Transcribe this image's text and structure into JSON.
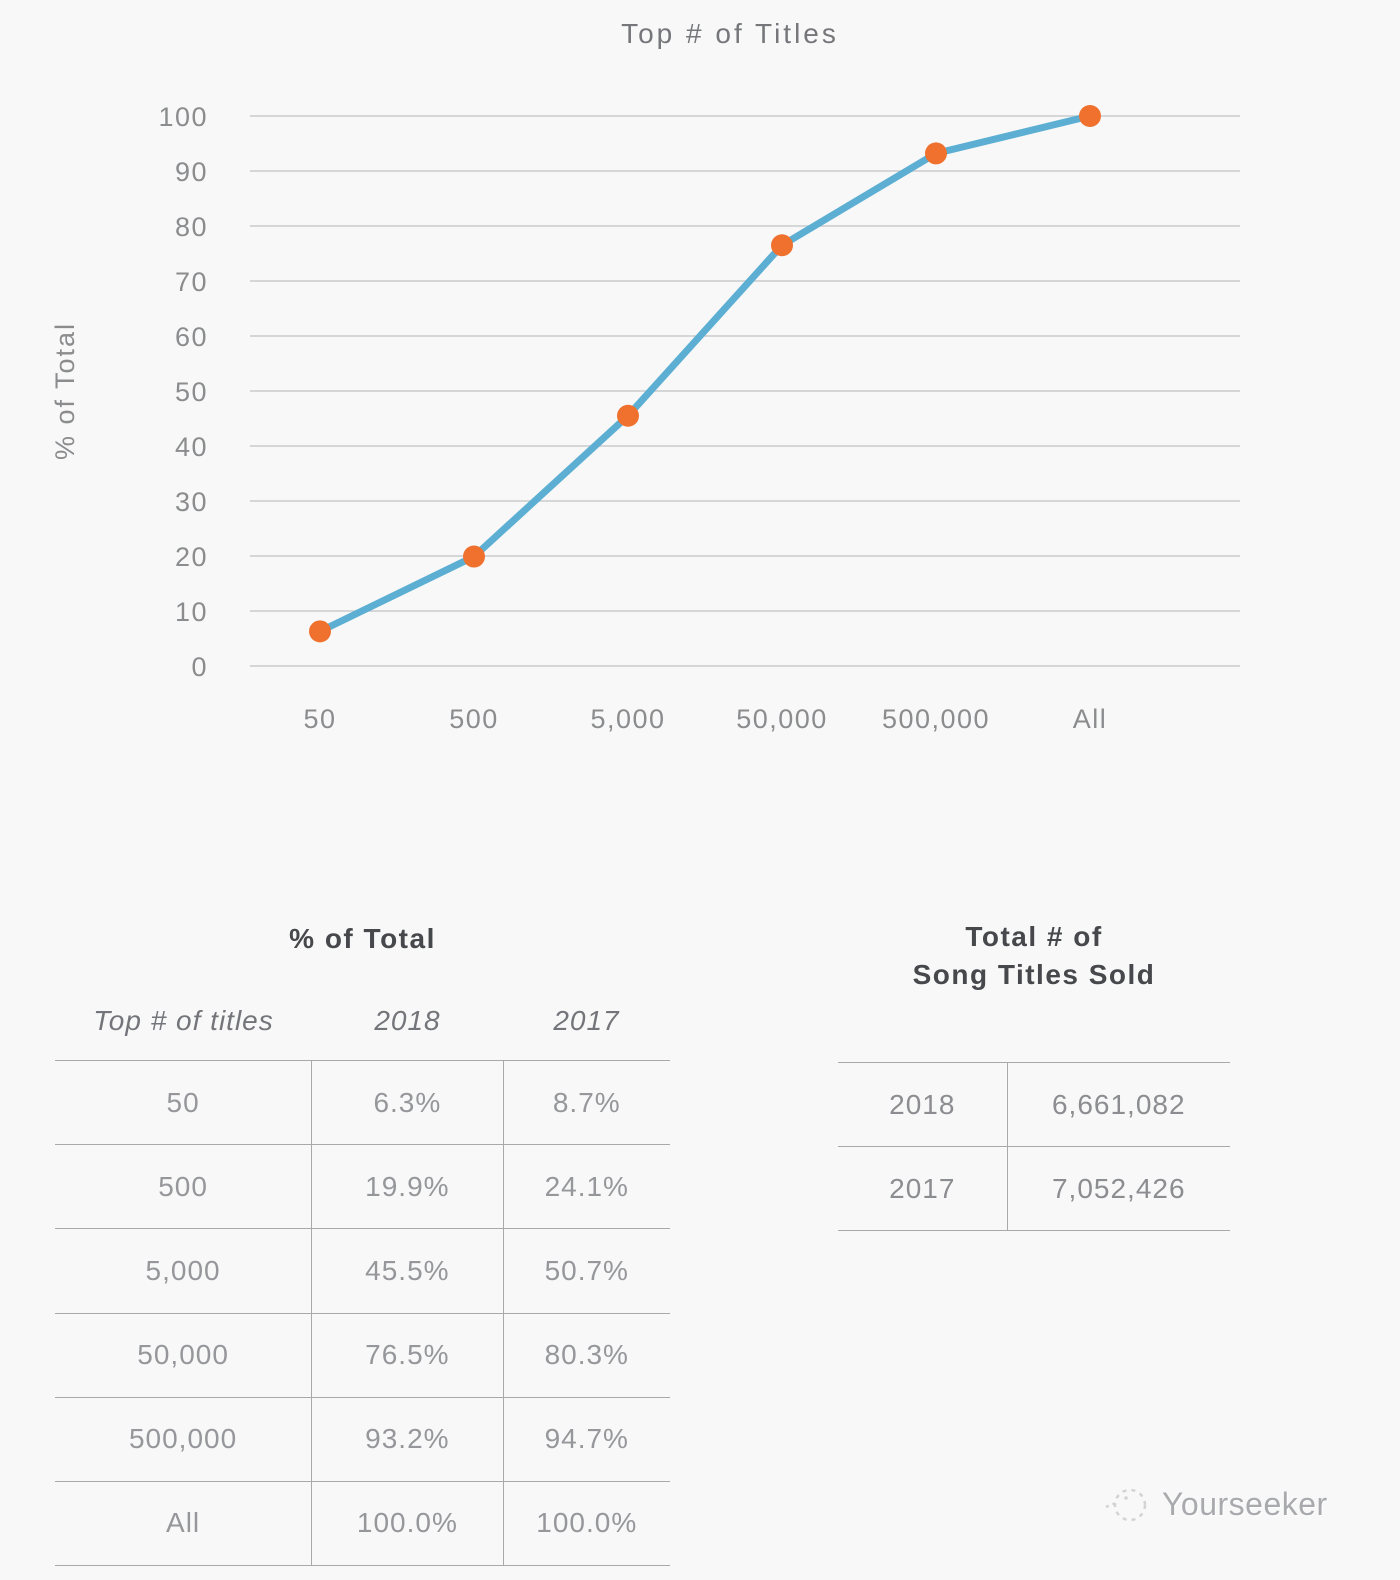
{
  "chart_data": {
    "type": "line",
    "title": "Top # of Titles",
    "ylabel": "% of Total",
    "categories": [
      "50",
      "500",
      "5,000",
      "50,000",
      "500,000",
      "All"
    ],
    "series": [
      {
        "name": "2018",
        "values": [
          6.3,
          19.9,
          45.5,
          76.5,
          93.2,
          100.0
        ]
      }
    ],
    "ylim": [
      0,
      100
    ],
    "ytick_step": 10,
    "grid": true,
    "legend": "none",
    "line_color": "#5cafd3",
    "marker_color": "#f0712e",
    "gridline_color": "#c9cacc",
    "axis_text_color": "#8b8c8e"
  },
  "percent_table": {
    "title": "% of Total",
    "headers": [
      "Top # of titles",
      "2018",
      "2017"
    ],
    "rows": [
      [
        "50",
        "6.3%",
        "8.7%"
      ],
      [
        "500",
        "19.9%",
        "24.1%"
      ],
      [
        "5,000",
        "45.5%",
        "50.7%"
      ],
      [
        "50,000",
        "76.5%",
        "80.3%"
      ],
      [
        "500,000",
        "93.2%",
        "94.7%"
      ],
      [
        "All",
        "100.0%",
        "100.0%"
      ]
    ]
  },
  "totals_table": {
    "title_line1": "Total # of",
    "title_line2": "Song Titles Sold",
    "rows": [
      [
        "2018",
        "6,661,082"
      ],
      [
        "2017",
        "7,052,426"
      ]
    ]
  },
  "watermark": {
    "brand": "Yourseeker"
  }
}
